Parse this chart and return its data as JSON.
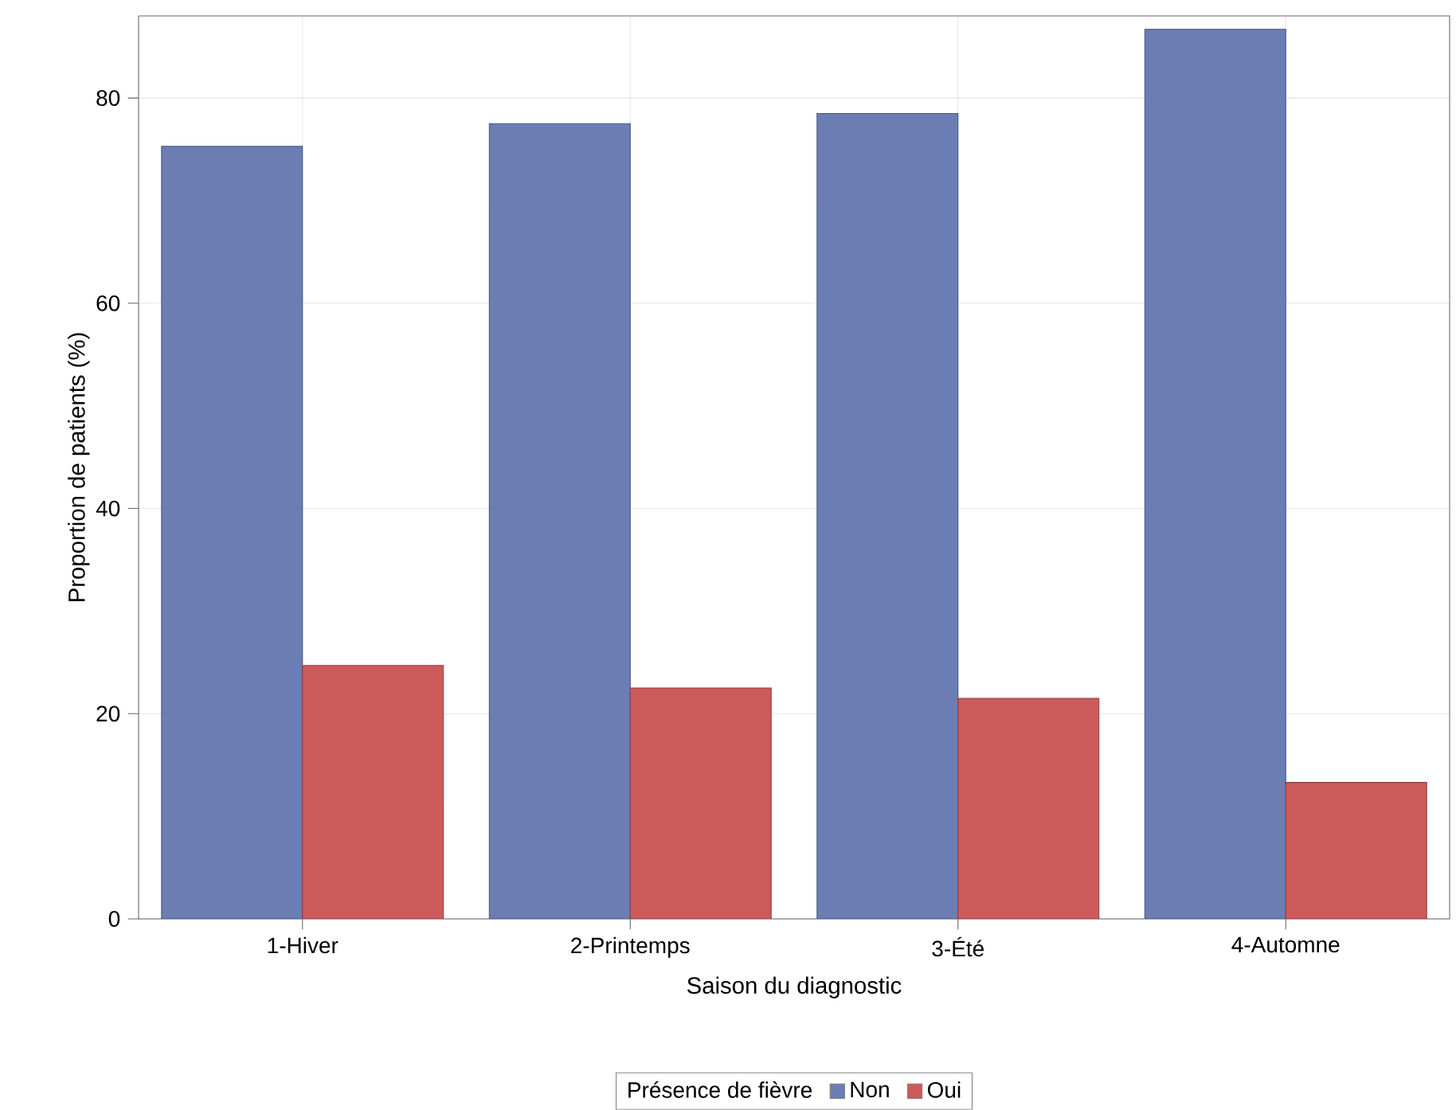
{
  "chart_data": {
    "type": "bar",
    "xlabel": "Saison du diagnostic",
    "ylabel": "Proportion de patients (%)",
    "legend_title": "Présence de fièvre",
    "categories": [
      "1-Hiver",
      "2-Printemps",
      "3-Été",
      "4-Automne"
    ],
    "series": [
      {
        "name": "Non",
        "color": "#6b7db3",
        "values": [
          75.3,
          77.5,
          78.5,
          86.7
        ]
      },
      {
        "name": "Oui",
        "color": "#cd5a5a",
        "values": [
          24.7,
          22.5,
          21.5,
          13.3
        ]
      }
    ],
    "ylim": [
      0,
      88
    ],
    "yticks": [
      0,
      20,
      40,
      60,
      80
    ],
    "grid": true,
    "legend": "bottom"
  }
}
